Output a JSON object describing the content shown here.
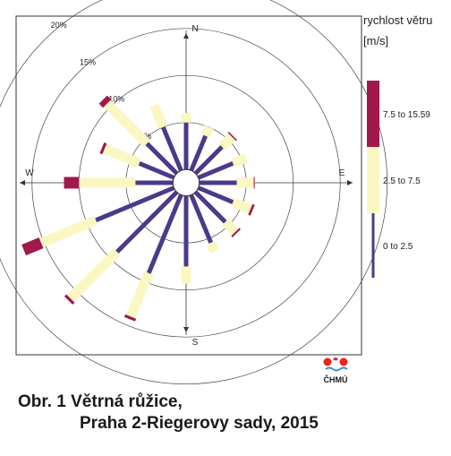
{
  "chart_data": {
    "type": "wind_rose",
    "directions": [
      "N",
      "NNE",
      "NE",
      "ENE",
      "E",
      "ESE",
      "SE",
      "SSE",
      "S",
      "SSW",
      "SW",
      "WSW",
      "W",
      "WNW",
      "NW",
      "NNW"
    ],
    "speed_bins": [
      {
        "label": "0 to 2.5",
        "color": "#4b3a8a"
      },
      {
        "label": "2.5 to 7.5",
        "color": "#fbf7c2"
      },
      {
        "label": "7.5 to 15.59",
        "color": "#a0194a"
      }
    ],
    "series": [
      {
        "name": "0 to 2.5",
        "values": [
          5.0,
          4.0,
          4.0,
          4.0,
          4.0,
          4.0,
          4.5,
          5.5,
          7.5,
          9.0,
          9.0,
          9.0,
          4.0,
          4.0,
          4.5,
          5.0
        ]
      },
      {
        "name": "2.5 to 7.5",
        "values": [
          1.0,
          1.0,
          1.5,
          1.5,
          1.8,
          2.0,
          1.5,
          1.0,
          1.8,
          5.0,
          7.0,
          6.3,
          6.0,
          4.0,
          6.0,
          2.5
        ]
      },
      {
        "name": "7.5 to 15.59",
        "values": [
          0.0,
          0.0,
          0.15,
          0.0,
          0.1,
          0.25,
          0.2,
          0.0,
          0.0,
          0.3,
          0.3,
          2.0,
          1.6,
          0.3,
          0.6,
          0.0
        ]
      }
    ],
    "calm_radius": 1.4,
    "rings": [
      {
        "value": 5,
        "label": "5%"
      },
      {
        "value": 10,
        "label": "10%"
      },
      {
        "value": 15,
        "label": "15%"
      },
      {
        "value": 20,
        "label": "20%"
      }
    ],
    "compass": {
      "N": "N",
      "E": "E",
      "S": "S",
      "W": "W"
    },
    "legend_title_line1": "rychlost větru",
    "legend_title_line2": "[m/s]",
    "legend_placement": "right"
  },
  "logo_text": "ČHMÚ",
  "caption": {
    "line1": "Obr. 1  Větrná růžice,",
    "line2": "Praha 2-Riegerovy sady, 2015"
  }
}
